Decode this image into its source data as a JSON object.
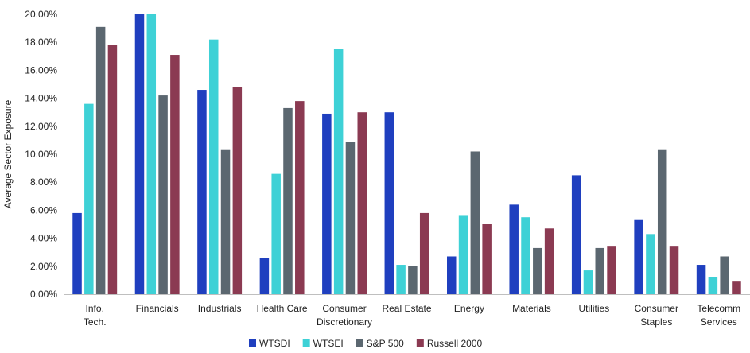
{
  "chart_data": {
    "type": "bar",
    "ylabel": "Average Sector Exposure",
    "xlabel": "",
    "ylim": [
      0,
      20
    ],
    "yticks": [
      "0.00%",
      "2.00%",
      "4.00%",
      "6.00%",
      "8.00%",
      "10.00%",
      "12.00%",
      "14.00%",
      "16.00%",
      "18.00%",
      "20.00%"
    ],
    "grid": false,
    "legend_position": "bottom",
    "categories": [
      [
        "Info.",
        "Tech."
      ],
      [
        "Financials"
      ],
      [
        "Industrials"
      ],
      [
        "Health Care"
      ],
      [
        "Consumer",
        "Discretionary"
      ],
      [
        "Real Estate"
      ],
      [
        "Energy"
      ],
      [
        "Materials"
      ],
      [
        "Utilities"
      ],
      [
        "Consumer",
        "Staples"
      ],
      [
        "Telecomm",
        "Services"
      ]
    ],
    "series": [
      {
        "name": "WTSDI",
        "color": "#1F3FBF",
        "values": [
          5.8,
          20.0,
          14.6,
          2.6,
          12.9,
          13.0,
          2.7,
          6.4,
          8.5,
          5.3,
          2.1
        ]
      },
      {
        "name": "WTSEI",
        "color": "#3ED1D6",
        "values": [
          13.6,
          20.0,
          18.2,
          8.6,
          17.5,
          2.1,
          5.6,
          5.5,
          1.7,
          4.3,
          1.2
        ]
      },
      {
        "name": "S&P 500",
        "color": "#5B6770",
        "values": [
          19.1,
          14.2,
          10.3,
          13.3,
          10.9,
          2.0,
          10.2,
          3.3,
          3.3,
          10.3,
          2.7
        ]
      },
      {
        "name": "Russell 2000",
        "color": "#8B3A52",
        "values": [
          17.8,
          17.1,
          14.8,
          13.8,
          13.0,
          5.8,
          5.0,
          4.7,
          3.4,
          3.4,
          0.9
        ]
      }
    ]
  }
}
